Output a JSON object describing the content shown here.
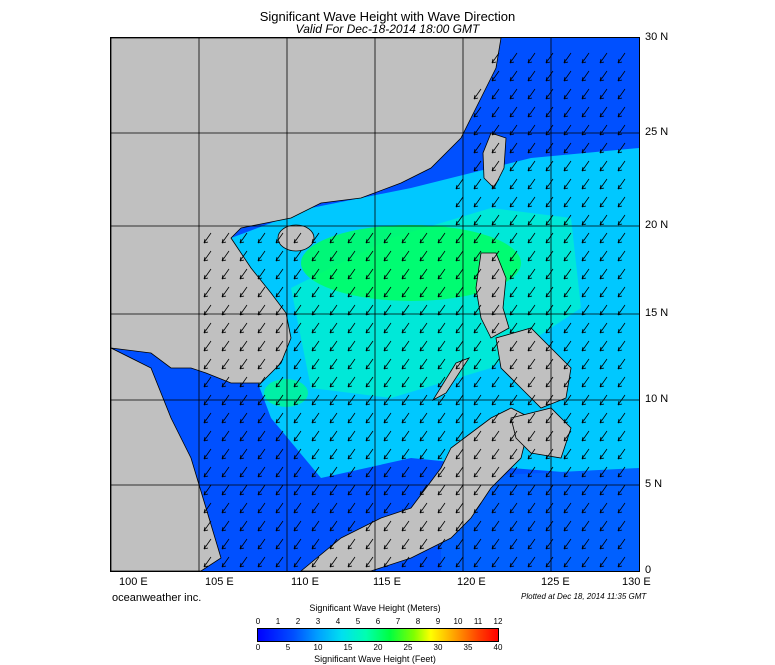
{
  "title": "Significant Wave Height with Wave Direction",
  "subtitle": "Valid For Dec-18-2014 18:00 GMT",
  "lat_labels": [
    "30 N",
    "25 N",
    "20 N",
    "15 N",
    "10 N",
    "5 N",
    "0"
  ],
  "lon_labels": [
    "100 E",
    "105 E",
    "110 E",
    "115 E",
    "120 E",
    "125 E",
    "130 E"
  ],
  "credit": "oceanweather inc.",
  "plotted": "Plotted at Dec 18, 2014 11:35 GMT",
  "colorbar": {
    "title_meters": "Significant Wave Height (Meters)",
    "title_feet": "Significant Wave Height (Feet)",
    "meters_ticks": [
      "0",
      "1",
      "2",
      "3",
      "4",
      "5",
      "6",
      "7",
      "8",
      "9",
      "10",
      "11",
      "12"
    ],
    "feet_ticks": [
      "0",
      "5",
      "10",
      "15",
      "20",
      "25",
      "30",
      "35",
      "40"
    ]
  },
  "colors": {
    "land": "#c0c0c0",
    "deep": "#0033ff",
    "mid": "#00a8ff",
    "high": "#00ff66"
  }
}
